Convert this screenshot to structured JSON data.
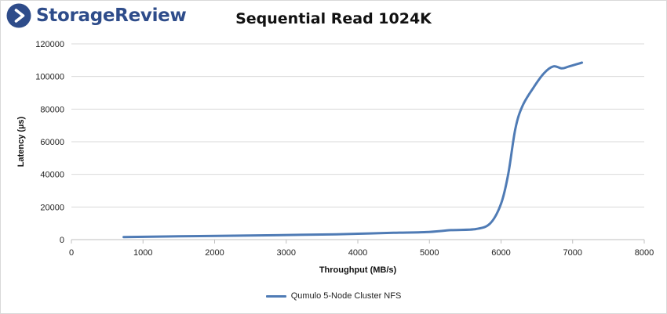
{
  "brand": {
    "name": "StorageReview"
  },
  "chart_data": {
    "type": "line",
    "title": "Sequential Read 1024K",
    "xlabel": "Throughput (MB/s)",
    "ylabel": "Latency (µs)",
    "xlim": [
      0,
      8000
    ],
    "ylim": [
      0,
      120000
    ],
    "xticks": [
      0,
      1000,
      2000,
      3000,
      4000,
      5000,
      6000,
      7000,
      8000
    ],
    "yticks": [
      0,
      20000,
      40000,
      60000,
      80000,
      100000,
      120000
    ],
    "grid": "horizontal",
    "legend_position": "bottom",
    "colors": {
      "series": "#4f7bb5",
      "grid": "#d9d9d9"
    },
    "series": [
      {
        "name": "Qumulo 5-Node Cluster NFS",
        "x": [
          730,
          1500,
          2500,
          3500,
          4000,
          4500,
          4950,
          5300,
          5650,
          5850,
          6000,
          6100,
          6200,
          6300,
          6450,
          6600,
          6730,
          6850,
          6950,
          7130
        ],
        "y": [
          1600,
          2000,
          2500,
          3100,
          3600,
          4200,
          4600,
          5800,
          6500,
          10000,
          22000,
          40000,
          68000,
          82000,
          93000,
          102000,
          106200,
          105000,
          106200,
          108500
        ]
      }
    ]
  }
}
